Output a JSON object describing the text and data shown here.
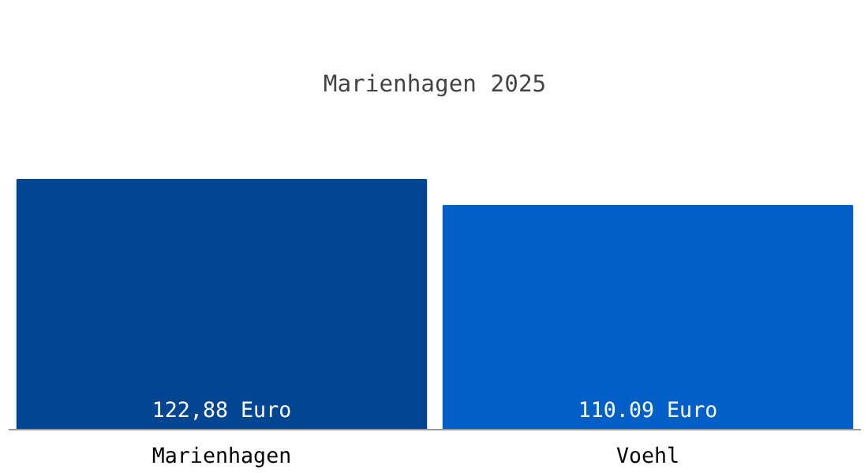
{
  "chart_data": {
    "type": "bar",
    "title": "Marienhagen 2025",
    "categories": [
      "Marienhagen",
      "Voehl"
    ],
    "values": [
      122.88,
      110.09
    ],
    "colors": [
      "#024590",
      "#0160c6"
    ],
    "value_labels": [
      "122,88 Euro",
      "110.09 Euro"
    ],
    "tick_labels": "x",
    "grid": false
  }
}
